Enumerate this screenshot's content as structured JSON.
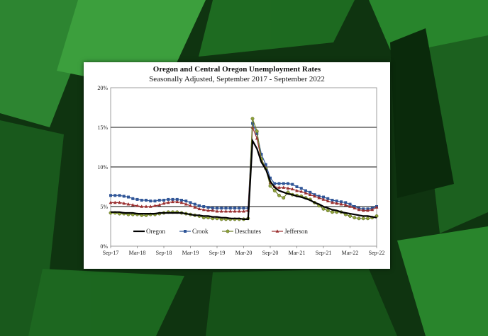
{
  "chart_data": {
    "type": "line",
    "title": "Oregon and Central Oregon Unemployment Rates",
    "subtitle": "Seasonally Adjusted, September 2017 - September 2022",
    "xlabel": "",
    "ylabel": "",
    "ylim": [
      0,
      20
    ],
    "yticks": [
      "0%",
      "5%",
      "10%",
      "15%",
      "20%"
    ],
    "xticks": [
      "Sep-17",
      "Mar-18",
      "Sep-18",
      "Mar-19",
      "Sep-19",
      "Mar-20",
      "Sep-20",
      "Mar-21",
      "Sep-21",
      "Mar-22",
      "Sep-22"
    ],
    "grid": "horizontal",
    "legend": "inside bottom-center",
    "series": [
      {
        "name": "Oregon",
        "color": "#000000",
        "marker": "none",
        "values": [
          4.3,
          4.3,
          4.3,
          4.2,
          4.2,
          4.2,
          4.1,
          4.1,
          4.1,
          4.1,
          4.1,
          4.2,
          4.2,
          4.2,
          4.2,
          4.2,
          4.2,
          4.1,
          4.0,
          3.9,
          3.9,
          3.8,
          3.8,
          3.7,
          3.7,
          3.6,
          3.6,
          3.5,
          3.5,
          3.5,
          3.4,
          3.4,
          13.3,
          12.3,
          10.6,
          9.7,
          8.2,
          7.4,
          7.0,
          6.8,
          6.6,
          6.5,
          6.3,
          6.2,
          6.0,
          5.8,
          5.5,
          5.3,
          5.0,
          4.8,
          4.6,
          4.5,
          4.3,
          4.2,
          4.1,
          4.0,
          3.9,
          3.8,
          3.8,
          3.7,
          3.6
        ]
      },
      {
        "name": "Crook",
        "color": "#2f5597",
        "marker": "square",
        "values": [
          6.4,
          6.4,
          6.4,
          6.3,
          6.2,
          6.0,
          5.9,
          5.8,
          5.8,
          5.7,
          5.7,
          5.8,
          5.8,
          5.9,
          5.9,
          5.9,
          5.8,
          5.7,
          5.5,
          5.3,
          5.1,
          5.0,
          4.9,
          4.8,
          4.8,
          4.8,
          4.8,
          4.8,
          4.8,
          4.8,
          4.8,
          4.8,
          15.5,
          14.2,
          11.6,
          10.3,
          8.6,
          7.9,
          7.9,
          7.9,
          7.9,
          7.8,
          7.5,
          7.3,
          7.0,
          6.8,
          6.5,
          6.3,
          6.2,
          6.0,
          5.8,
          5.7,
          5.6,
          5.5,
          5.3,
          5.0,
          4.8,
          4.7,
          4.7,
          4.8,
          5.0
        ]
      },
      {
        "name": "Deschutes",
        "color": "#6b7a25",
        "marker": "circle",
        "values": [
          4.2,
          4.2,
          4.1,
          4.1,
          4.0,
          4.0,
          4.0,
          3.9,
          3.9,
          4.0,
          4.0,
          4.1,
          4.2,
          4.3,
          4.3,
          4.3,
          4.2,
          4.1,
          4.0,
          3.9,
          3.8,
          3.6,
          3.6,
          3.5,
          3.5,
          3.4,
          3.4,
          3.4,
          3.4,
          3.4,
          3.4,
          3.5,
          16.1,
          14.5,
          11.0,
          9.8,
          7.6,
          7.0,
          6.4,
          6.1,
          6.8,
          6.5,
          6.4,
          6.3,
          6.1,
          5.9,
          5.5,
          5.1,
          4.7,
          4.5,
          4.3,
          4.3,
          4.3,
          4.0,
          3.8,
          3.6,
          3.5,
          3.5,
          3.5,
          3.6,
          3.8
        ]
      },
      {
        "name": "Jefferson",
        "color": "#9a2e2e",
        "marker": "triangle",
        "values": [
          5.5,
          5.5,
          5.5,
          5.4,
          5.3,
          5.2,
          5.1,
          5.0,
          5.0,
          5.0,
          5.1,
          5.2,
          5.4,
          5.5,
          5.6,
          5.6,
          5.5,
          5.3,
          5.1,
          4.9,
          4.7,
          4.6,
          4.5,
          4.5,
          4.4,
          4.4,
          4.4,
          4.4,
          4.4,
          4.4,
          4.4,
          4.5,
          15.0,
          13.6,
          10.9,
          9.9,
          8.0,
          7.5,
          7.4,
          7.4,
          7.3,
          7.2,
          7.0,
          6.9,
          6.7,
          6.5,
          6.3,
          6.1,
          5.9,
          5.7,
          5.5,
          5.4,
          5.3,
          5.2,
          5.0,
          4.8,
          4.6,
          4.5,
          4.5,
          4.6,
          4.9
        ]
      }
    ]
  }
}
